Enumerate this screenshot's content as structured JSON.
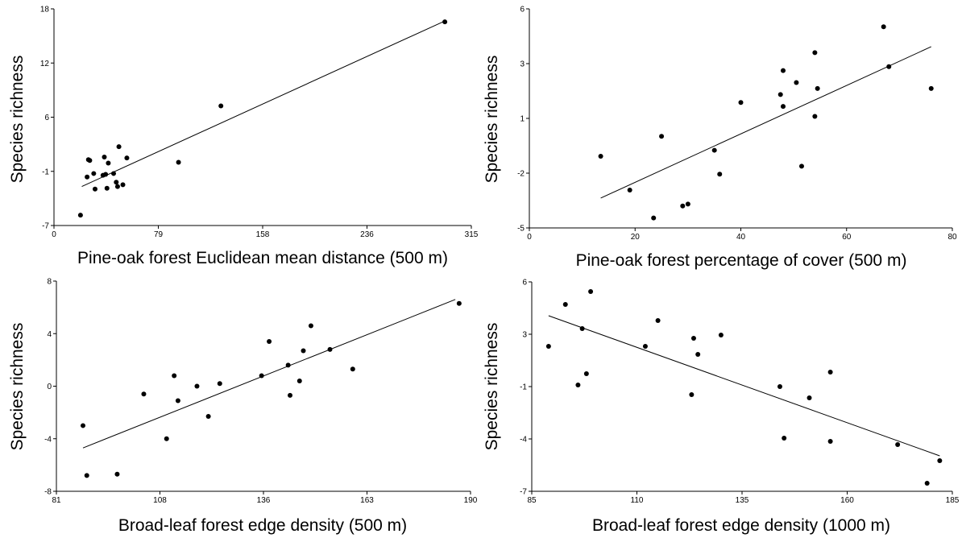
{
  "chart_data": [
    {
      "type": "scatter",
      "xlabel": "Pine-oak forest Euclidean mean distance (500 m)",
      "ylabel": "Species richness",
      "xlim": [
        0,
        315
      ],
      "ylim": [
        -7,
        18
      ],
      "xticks": [
        "0",
        "79",
        "158",
        "236",
        "315"
      ],
      "yticks": [
        "-7",
        "-1",
        "6",
        "12",
        "18"
      ],
      "points": [
        {
          "x": 20,
          "y": -5.8
        },
        {
          "x": 25,
          "y": -1.4
        },
        {
          "x": 26,
          "y": 0.6
        },
        {
          "x": 27,
          "y": 0.5
        },
        {
          "x": 30,
          "y": -1
        },
        {
          "x": 31,
          "y": -2.8
        },
        {
          "x": 37,
          "y": -1.2
        },
        {
          "x": 38,
          "y": 0.9
        },
        {
          "x": 39,
          "y": -1.1
        },
        {
          "x": 40,
          "y": -2.7
        },
        {
          "x": 41,
          "y": 0.2
        },
        {
          "x": 45,
          "y": -1
        },
        {
          "x": 47,
          "y": -2
        },
        {
          "x": 48,
          "y": -2.5
        },
        {
          "x": 49,
          "y": 2.1
        },
        {
          "x": 52,
          "y": -2.3
        },
        {
          "x": 55,
          "y": 0.8
        },
        {
          "x": 94,
          "y": 0.3
        },
        {
          "x": 126,
          "y": 6.8
        },
        {
          "x": 295,
          "y": 16.5
        }
      ],
      "fit_line": {
        "x": [
          21,
          295
        ],
        "y": [
          -2.5,
          16.6
        ]
      }
    },
    {
      "type": "scatter",
      "xlabel": "Pine-oak forest percentage of cover (500 m)",
      "ylabel": "Species richness",
      "xlim": [
        0,
        80
      ],
      "ylim": [
        -5,
        6
      ],
      "xticks": [
        "0",
        "20",
        "40",
        "60",
        "80"
      ],
      "yticks": [
        "-5",
        "-2",
        "1",
        "3",
        "6"
      ],
      "points": [
        {
          "x": 13.5,
          "y": -1.4
        },
        {
          "x": 19,
          "y": -3.1
        },
        {
          "x": 23.5,
          "y": -4.5
        },
        {
          "x": 25,
          "y": -0.4
        },
        {
          "x": 29,
          "y": -3.9
        },
        {
          "x": 30,
          "y": -3.8
        },
        {
          "x": 35,
          "y": -1.1
        },
        {
          "x": 36,
          "y": -2.3
        },
        {
          "x": 40,
          "y": 1.3
        },
        {
          "x": 47.5,
          "y": 1.7
        },
        {
          "x": 48,
          "y": 1.1
        },
        {
          "x": 48,
          "y": 2.9
        },
        {
          "x": 50.5,
          "y": 2.3
        },
        {
          "x": 51.5,
          "y": -1.9
        },
        {
          "x": 54,
          "y": 3.8
        },
        {
          "x": 54,
          "y": 0.6
        },
        {
          "x": 54.5,
          "y": 2.0
        },
        {
          "x": 67,
          "y": 5.1
        },
        {
          "x": 68,
          "y": 3.1
        },
        {
          "x": 76,
          "y": 2.0
        }
      ],
      "fit_line": {
        "x": [
          13.5,
          76
        ],
        "y": [
          -3.5,
          4.1
        ]
      }
    },
    {
      "type": "scatter",
      "xlabel": "Broad-leaf forest edge density (500 m)",
      "ylabel": "Species richness",
      "xlim": [
        81,
        190
      ],
      "ylim": [
        -8,
        8
      ],
      "xticks": [
        "81",
        "108",
        "136",
        "163",
        "190"
      ],
      "yticks": [
        "-8",
        "-4",
        "0",
        "4",
        "8"
      ],
      "points": [
        {
          "x": 88,
          "y": -3
        },
        {
          "x": 89,
          "y": -6.8
        },
        {
          "x": 97,
          "y": -6.7
        },
        {
          "x": 104,
          "y": -0.6
        },
        {
          "x": 110,
          "y": -4
        },
        {
          "x": 112,
          "y": 0.8
        },
        {
          "x": 113,
          "y": -1.1
        },
        {
          "x": 118,
          "y": 0
        },
        {
          "x": 121,
          "y": -2.3
        },
        {
          "x": 124,
          "y": 0.2
        },
        {
          "x": 135,
          "y": 0.8
        },
        {
          "x": 137,
          "y": 3.4
        },
        {
          "x": 142,
          "y": 1.6
        },
        {
          "x": 142.5,
          "y": -0.7
        },
        {
          "x": 145,
          "y": 0.4
        },
        {
          "x": 146,
          "y": 2.7
        },
        {
          "x": 148,
          "y": 4.6
        },
        {
          "x": 153,
          "y": 2.8
        },
        {
          "x": 159,
          "y": 1.3
        },
        {
          "x": 187,
          "y": 6.3
        }
      ],
      "fit_line": {
        "x": [
          88,
          186
        ],
        "y": [
          -4.7,
          6.6
        ]
      }
    },
    {
      "type": "scatter",
      "xlabel": "Broad-leaf forest edge density (1000 m)",
      "ylabel": "Species richness",
      "xlim": [
        85,
        185
      ],
      "ylim": [
        -7,
        6
      ],
      "xticks": [
        "85",
        "110",
        "135",
        "160",
        "185"
      ],
      "yticks": [
        "-7",
        "-4",
        "-1",
        "3",
        "6"
      ],
      "points": [
        {
          "x": 89,
          "y": 2.0
        },
        {
          "x": 93,
          "y": 4.6
        },
        {
          "x": 96,
          "y": -0.4
        },
        {
          "x": 97,
          "y": 3.1
        },
        {
          "x": 98,
          "y": 0.3
        },
        {
          "x": 99,
          "y": 5.4
        },
        {
          "x": 112,
          "y": 2
        },
        {
          "x": 115,
          "y": 3.6
        },
        {
          "x": 123,
          "y": -1.0
        },
        {
          "x": 123.5,
          "y": 2.5
        },
        {
          "x": 124.5,
          "y": 1.5
        },
        {
          "x": 130,
          "y": 2.7
        },
        {
          "x": 144,
          "y": -0.5
        },
        {
          "x": 145,
          "y": -3.7
        },
        {
          "x": 151,
          "y": -1.2
        },
        {
          "x": 156,
          "y": 0.4
        },
        {
          "x": 156,
          "y": -3.9
        },
        {
          "x": 172,
          "y": -4.1
        },
        {
          "x": 179,
          "y": -6.5
        },
        {
          "x": 182,
          "y": -5.1
        }
      ],
      "fit_line": {
        "x": [
          89,
          182
        ],
        "y": [
          3.9,
          -4.8
        ]
      }
    }
  ]
}
